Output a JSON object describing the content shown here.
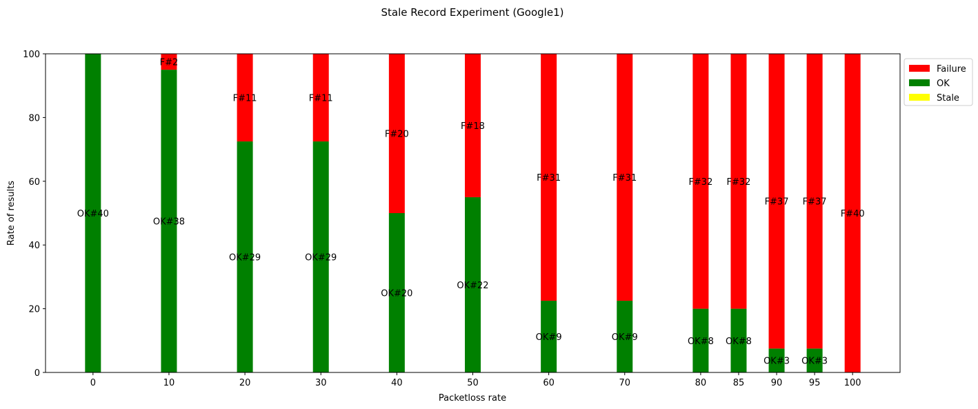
{
  "chart_data": {
    "type": "bar",
    "stacked": true,
    "title": "Stale Record Experiment (Google1)",
    "xlabel": "Packetloss rate",
    "ylabel": "Rate of results",
    "ylim": [
      0,
      100
    ],
    "y_ticks": [
      "0",
      "20",
      "40",
      "60",
      "80",
      "100"
    ],
    "categories": [
      "0",
      "10",
      "20",
      "30",
      "40",
      "50",
      "60",
      "70",
      "80",
      "85",
      "90",
      "95",
      "100"
    ],
    "x_values": [
      0,
      10,
      20,
      30,
      40,
      50,
      60,
      70,
      80,
      85,
      90,
      95,
      100
    ],
    "grid": false,
    "legend_position": "outside top-right",
    "series": [
      {
        "name": "OK",
        "color": "#008000",
        "values": [
          100,
          95,
          72.5,
          72.5,
          50,
          55,
          22.5,
          22.5,
          20,
          20,
          7.5,
          7.5,
          0
        ],
        "labels": [
          "OK#40",
          "OK#38",
          "OK#29",
          "OK#29",
          "OK#20",
          "OK#22",
          "OK#9",
          "OK#9",
          "OK#8",
          "OK#8",
          "OK#3",
          "OK#3",
          ""
        ]
      },
      {
        "name": "Stale",
        "color": "#ffff00",
        "values": [
          0,
          0,
          0,
          0,
          0,
          0,
          0,
          0,
          0,
          0,
          0,
          0,
          0
        ],
        "labels": [
          "",
          "",
          "",
          "",
          "",
          "",
          "",
          "",
          "",
          "",
          "",
          "",
          ""
        ]
      },
      {
        "name": "Failure",
        "color": "#ff0000",
        "values": [
          0,
          5,
          27.5,
          27.5,
          50,
          45,
          77.5,
          77.5,
          80,
          80,
          92.5,
          92.5,
          100
        ],
        "labels": [
          "",
          "F#2",
          "F#11",
          "F#11",
          "F#20",
          "F#18",
          "F#31",
          "F#31",
          "F#32",
          "F#32",
          "F#37",
          "F#37",
          "F#40"
        ]
      }
    ],
    "legend": [
      "Failure",
      "OK",
      "Stale"
    ]
  }
}
